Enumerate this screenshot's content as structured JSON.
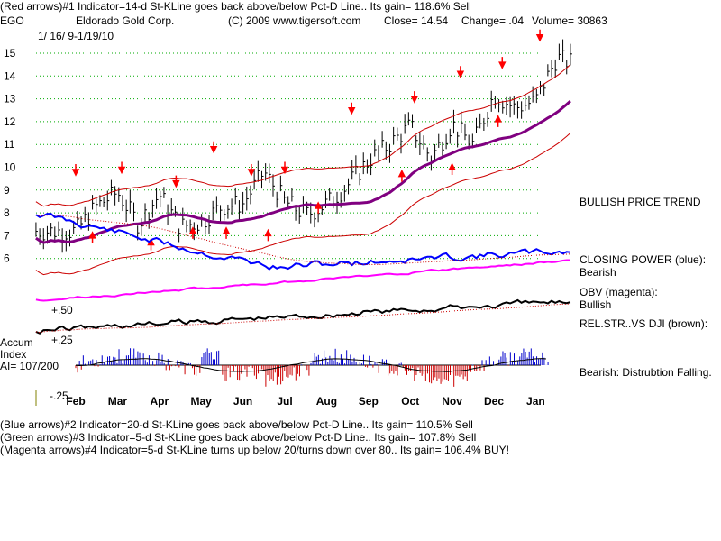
{
  "header": {
    "line1": "(Red arrows)#1 Indicator=14-d St-KLine goes back above/below Pct-D Line.. Its gain= 118.6% Sell",
    "ticker": "EGO",
    "company": "Eldorado Gold Corp.",
    "copyright": "(C) 2009 www.tigersoft.com",
    "close": "Close=  14.54",
    "change": "Change= .04",
    "volume": "Volume=  30863",
    "dates": "1/ 16/ 9-1/19/10"
  },
  "right_panel": {
    "trend": "BULLISH PRICE TREND",
    "closing_power_label": "CLOSING POWER (blue):",
    "closing_power_value": "Bearish",
    "obv_label": "OBV (magenta):",
    "obv_value": "Bullish",
    "relstr_label": "REL.STR..VS DJI (brown):",
    "accum_note": "Bearish: Distrubtion Falling."
  },
  "accum": {
    "label1": "Accum",
    "label2": "Index",
    "ai": "AI= 107/200",
    "level_hi": "+.50",
    "level_mid": "+.25",
    "level_lo": "-.25"
  },
  "footer": {
    "line1": "(Blue arrows)#2 Indicator=20-d St-KLine goes back above/below Pct-D Line.. Its gain= 110.5% Sell",
    "line2": "(Green arrows)#3 Indicator=5-d St-KLine goes back above/below Pct-D Line.. Its gain= 107.8% Sell",
    "line3": "(Magenta arrows)#4 Indicator=5-d St-KLine turns up below 20/turns down over 80.. Its gain= 106.4% BUY!"
  },
  "colors": {
    "price": "#000000",
    "bands": "#cc0000",
    "ma": "#800080",
    "closing_power": "#0000ff",
    "obv": "#ff00ff",
    "relstr": "#000000",
    "accum_pos": "#0000cc",
    "accum_neg": "#cc0000",
    "arrows": "#ff0000",
    "grid": "#00aa00"
  },
  "chart_data": {
    "type": "line",
    "xlabel": "",
    "ylabel": "",
    "months": [
      "Feb",
      "Mar",
      "Apr",
      "May",
      "Jun",
      "Jul",
      "Aug",
      "Sep",
      "Oct",
      "Nov",
      "Dec",
      "Jan"
    ],
    "y_ticks": [
      15,
      14,
      13,
      12,
      11,
      10,
      9,
      8,
      7,
      6
    ],
    "ylim": [
      5.6,
      15.7
    ],
    "grid": "horizontal dotted",
    "series": [
      {
        "name": "Close",
        "x": [
          0,
          0.5,
          1,
          1.5,
          2,
          2.5,
          3,
          3.5,
          4,
          4.5,
          5,
          5.5,
          6,
          6.5,
          7,
          7.5,
          8,
          8.5,
          9,
          9.5,
          10,
          10.5,
          11,
          11.5,
          12
        ],
        "values": [
          7.2,
          8.3,
          8.9,
          7.5,
          8.8,
          7.4,
          7.6,
          8.3,
          8.4,
          9.8,
          8.5,
          7.9,
          8.4,
          9.2,
          10.3,
          11.0,
          11.8,
          10.4,
          11.9,
          11.0,
          13.2,
          12.6,
          12.9,
          14.8,
          14.5
        ]
      }
    ],
    "arrows_down": [
      {
        "x": 0.0,
        "y": 9.9
      },
      {
        "x": 1.1,
        "y": 10.0
      },
      {
        "x": 2.4,
        "y": 9.4
      },
      {
        "x": 3.3,
        "y": 10.9
      },
      {
        "x": 4.2,
        "y": 9.9
      },
      {
        "x": 5.0,
        "y": 10.0
      },
      {
        "x": 6.6,
        "y": 12.6
      },
      {
        "x": 8.1,
        "y": 13.1
      },
      {
        "x": 9.2,
        "y": 14.2
      },
      {
        "x": 10.2,
        "y": 14.6
      },
      {
        "x": 11.1,
        "y": 15.8
      }
    ],
    "arrows_up": [
      {
        "x": 0.4,
        "y": 6.9
      },
      {
        "x": 1.8,
        "y": 6.6
      },
      {
        "x": 2.8,
        "y": 7.1
      },
      {
        "x": 3.6,
        "y": 7.1
      },
      {
        "x": 4.6,
        "y": 7.0
      },
      {
        "x": 5.8,
        "y": 8.2
      },
      {
        "x": 7.8,
        "y": 9.6
      },
      {
        "x": 9.0,
        "y": 9.9
      },
      {
        "x": 10.1,
        "y": 12.0
      }
    ]
  }
}
